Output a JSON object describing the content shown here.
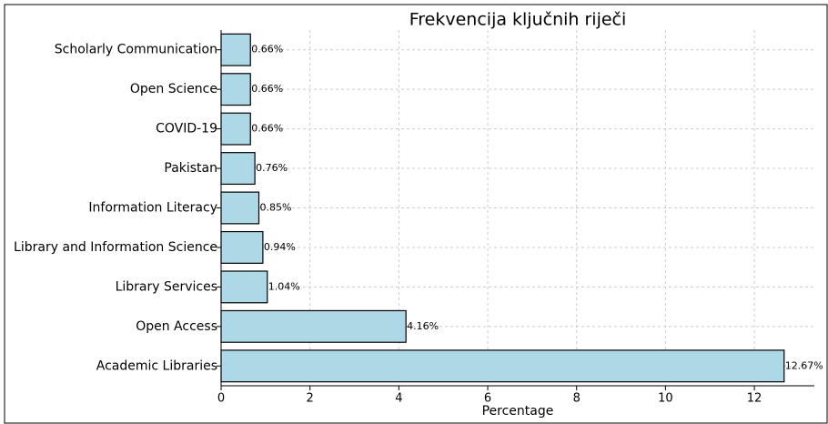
{
  "chart_data": {
    "type": "barh",
    "title": "Frekvencija ključnih riječi",
    "xlabel": "Percentage",
    "categories": [
      "Academic Libraries",
      "Open Access",
      "Library Services",
      "Library and Information Science",
      "Information Literacy",
      "Pakistan",
      "COVID-19",
      "Open Science",
      "Scholarly Communication"
    ],
    "values": [
      12.67,
      4.16,
      1.04,
      0.94,
      0.85,
      0.76,
      0.66,
      0.66,
      0.66
    ],
    "value_labels": [
      "12.67%",
      "4.16%",
      "1.04%",
      "0.94%",
      "0.85%",
      "0.76%",
      "0.66%",
      "0.66%",
      "0.66%"
    ],
    "color": "#add8e6",
    "xlim": [
      0,
      13.35
    ],
    "xticks": [
      0,
      2,
      4,
      6,
      8,
      10,
      12
    ],
    "grid": true
  }
}
